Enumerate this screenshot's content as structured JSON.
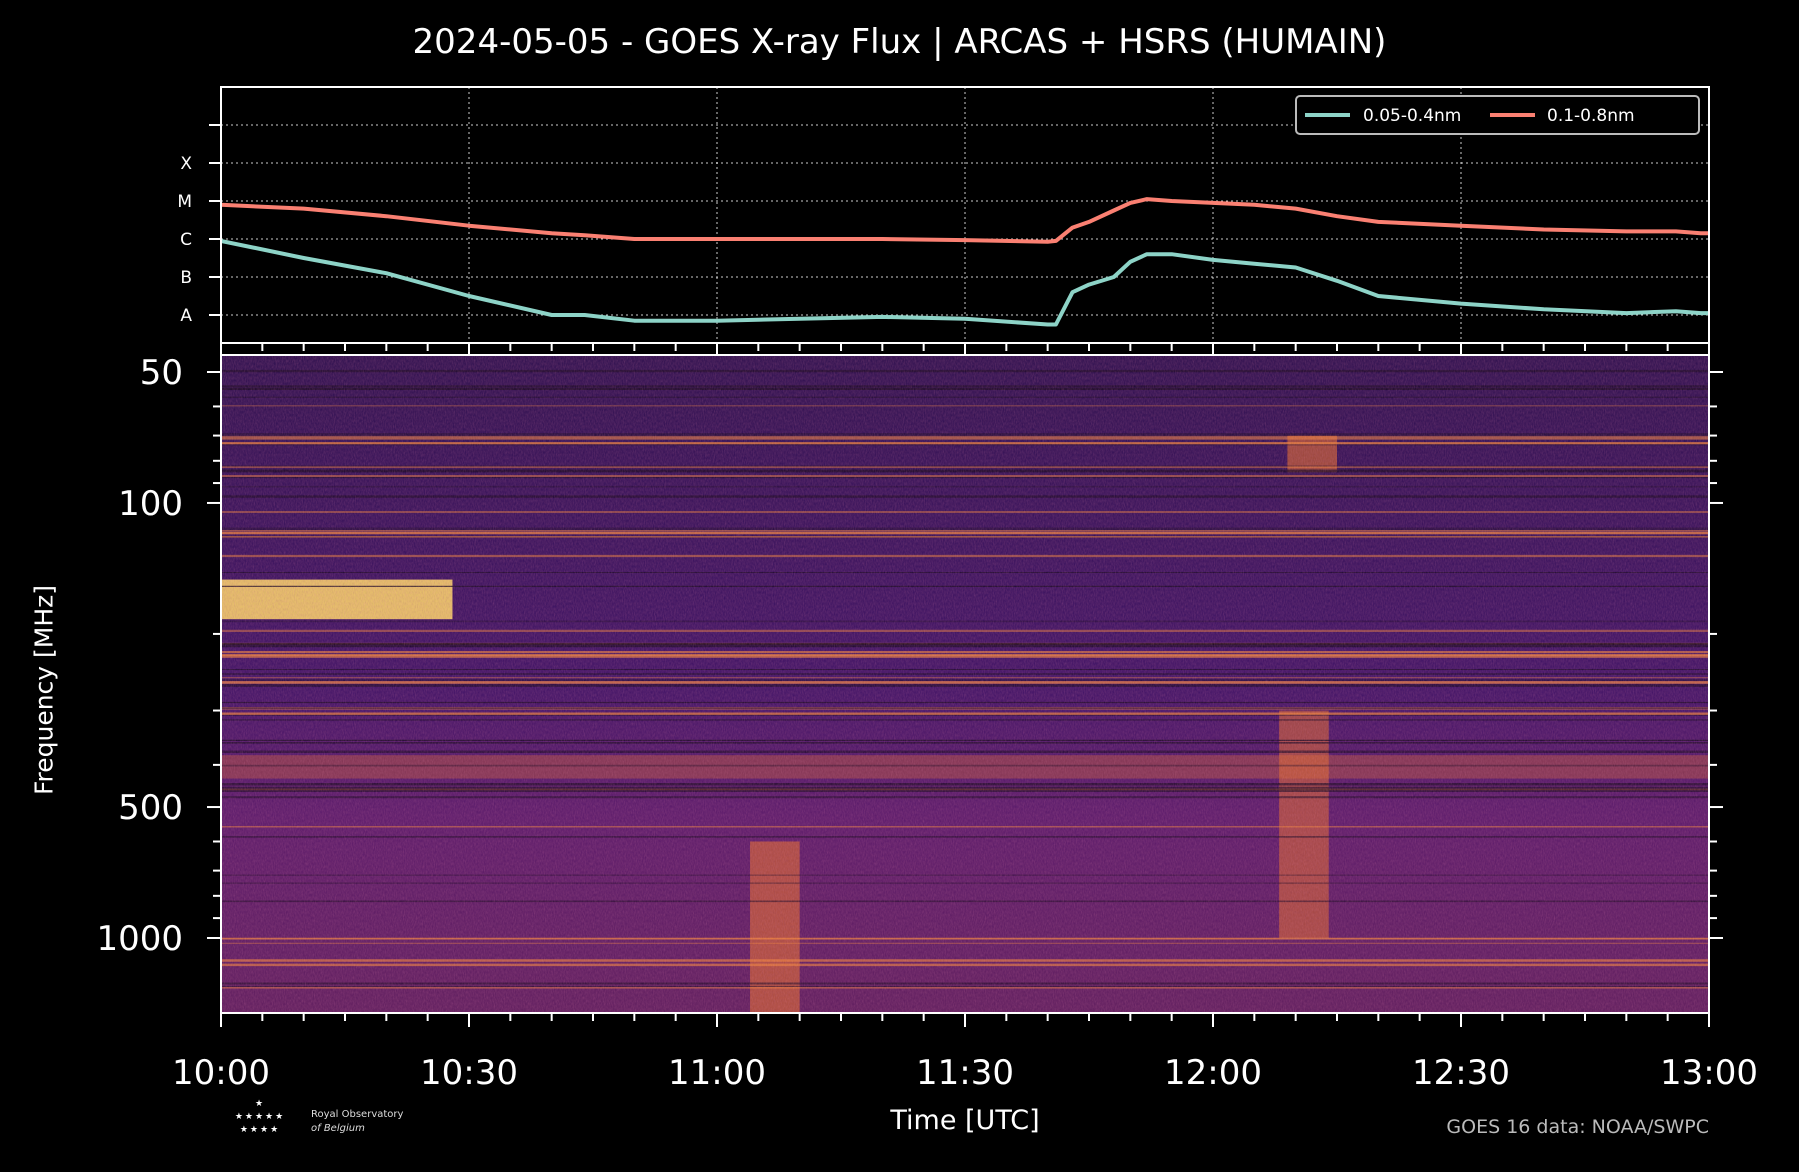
{
  "title": "2024-05-05 - GOES X-ray Flux | ARCAS + HSRS (HUMAIN)",
  "xlabel": "Time [UTC]",
  "ylabel": "Frequency [MHz]",
  "credit": "GOES 16 data: NOAA/SWPC",
  "logo": {
    "line1": "Royal Observatory",
    "line2": "of Belgium"
  },
  "chart_data": [
    {
      "type": "line",
      "x": [
        "10:00",
        "10:10",
        "10:20",
        "10:30",
        "10:40",
        "10:44",
        "10:50",
        "11:00",
        "11:10",
        "11:20",
        "11:30",
        "11:40",
        "11:41",
        "11:43",
        "11:45",
        "11:48",
        "11:50",
        "11:52",
        "11:55",
        "12:00",
        "12:05",
        "12:10",
        "12:15",
        "12:20",
        "12:30",
        "12:40",
        "12:50",
        "12:56",
        "12:59",
        "13:00"
      ],
      "y_classes": [
        "A",
        "B",
        "C",
        "M",
        "X"
      ],
      "ylim": [
        "A",
        "X+"
      ],
      "grid": true,
      "legend": "top-right",
      "series": [
        {
          "name": "0.05-0.4nm",
          "color": "#8dd3c7",
          "values": [
            1.95,
            1.5,
            1.1,
            0.5,
            0.0,
            0.0,
            -0.15,
            -0.15,
            -0.1,
            -0.05,
            -0.1,
            -0.25,
            -0.25,
            0.6,
            0.8,
            1.0,
            1.4,
            1.6,
            1.6,
            1.45,
            1.35,
            1.25,
            0.9,
            0.5,
            0.3,
            0.15,
            0.05,
            0.1,
            0.05,
            0.05
          ]
        },
        {
          "name": "0.1-0.8nm",
          "color": "#fa8072",
          "values": [
            2.9,
            2.8,
            2.6,
            2.35,
            2.15,
            2.1,
            2.0,
            2.0,
            2.0,
            2.0,
            1.97,
            1.93,
            1.95,
            2.3,
            2.45,
            2.75,
            2.95,
            3.05,
            3.0,
            2.95,
            2.9,
            2.8,
            2.6,
            2.45,
            2.35,
            2.25,
            2.2,
            2.2,
            2.15,
            2.15
          ]
        }
      ]
    },
    {
      "type": "heatmap",
      "x_range": [
        "10:00",
        "13:00"
      ],
      "x_ticks": [
        "10:00",
        "10:30",
        "11:00",
        "11:30",
        "12:00",
        "12:30",
        "13:00"
      ],
      "y_scale": "log",
      "y_ticks": [
        "50",
        "100",
        "500",
        "1000"
      ],
      "colormap": "inferno",
      "features": [
        {
          "freq_mhz": [
            150,
            185
          ],
          "time": [
            "10:00",
            "10:28"
          ],
          "intensity": 0.9
        },
        {
          "freq_mhz": [
            380,
            430
          ],
          "time": [
            "10:00",
            "13:00"
          ],
          "intensity": 0.35
        },
        {
          "freq_mhz": [
            600,
            1500
          ],
          "time": [
            "11:04",
            "11:10"
          ],
          "intensity": 0.6
        },
        {
          "freq_mhz": [
            300,
            1000
          ],
          "time": [
            "12:08",
            "12:14"
          ],
          "intensity": 0.55
        },
        {
          "freq_mhz": [
            70,
            85
          ],
          "time": [
            "12:09",
            "12:15"
          ],
          "intensity": 0.6
        }
      ]
    }
  ]
}
